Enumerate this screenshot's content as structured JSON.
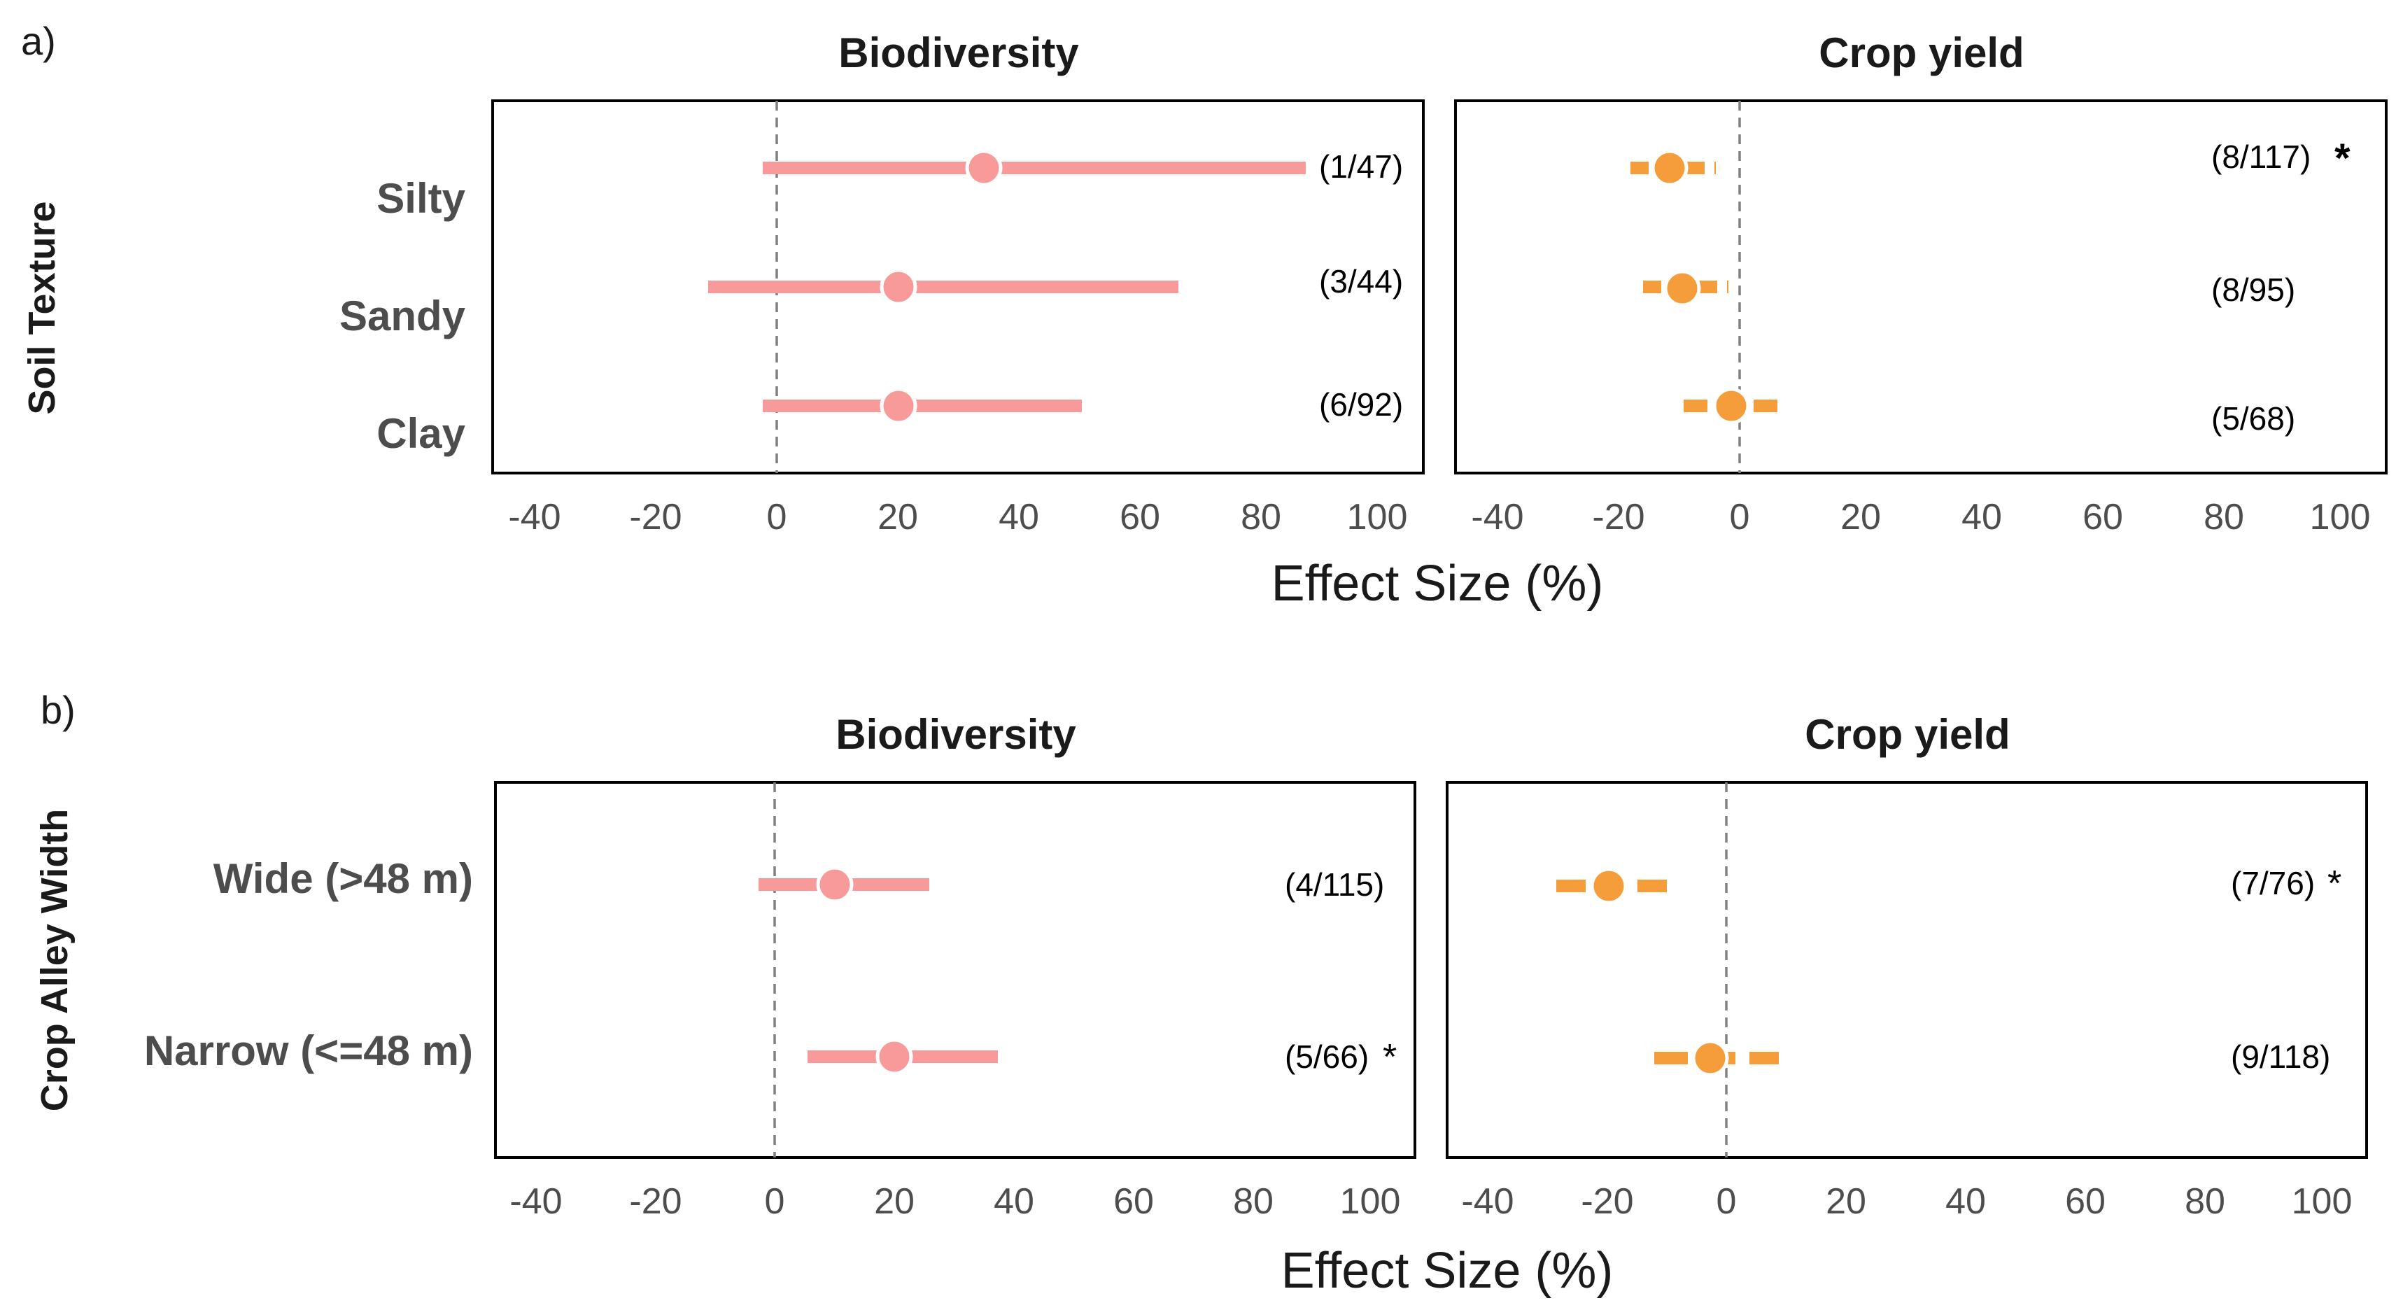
{
  "figure": {
    "x_title": "Effect Size (%)",
    "x_ticks": [
      -40,
      -20,
      0,
      20,
      40,
      60,
      80,
      100
    ],
    "colors": {
      "biodiversity": "#f8999a",
      "crop_yield": "#f59d3a",
      "axis_text": "#4d4d4d",
      "title_text": "#1a1a1a",
      "zero_line": "#808080"
    }
  },
  "chart_data": [
    {
      "type": "forest",
      "panel": "a)",
      "facet": "Soil Texture",
      "xlim": [
        -40,
        100
      ],
      "categories": [
        "Silty",
        "Sandy",
        "Clay"
      ],
      "series": [
        {
          "name": "Biodiversity",
          "color": "#f8999a",
          "points": [
            {
              "category": "Silty",
              "estimate": 34,
              "low": -2,
              "high": 87,
              "label": "(1/47)",
              "significant": false
            },
            {
              "category": "Sandy",
              "estimate": 20,
              "low": -11,
              "high": 66,
              "label": "(3/44)",
              "significant": false
            },
            {
              "category": "Clay",
              "estimate": 20,
              "low": -2,
              "high": 50,
              "label": "(6/92)",
              "significant": false
            }
          ]
        },
        {
          "name": "Crop yield",
          "color": "#f59d3a",
          "points": [
            {
              "category": "Silty",
              "estimate": -12,
              "low": -18,
              "high": -4,
              "label": "(8/117)",
              "significant": true
            },
            {
              "category": "Sandy",
              "estimate": -10,
              "low": -16,
              "high": -2,
              "label": "(8/95)",
              "significant": false
            },
            {
              "category": "Clay",
              "estimate": -2,
              "low": -9,
              "high": 7,
              "label": "(5/68)",
              "significant": false
            }
          ]
        }
      ]
    },
    {
      "type": "forest",
      "panel": "b)",
      "facet": "Crop Alley Width",
      "xlim": [
        -40,
        100
      ],
      "categories": [
        "Wide (>48 m)",
        "Narrow (<=48 m)"
      ],
      "series": [
        {
          "name": "Biodiversity",
          "color": "#f8999a",
          "points": [
            {
              "category": "Wide (>48 m)",
              "estimate": 10,
              "low": -3,
              "high": 26,
              "label": "(4/115)",
              "significant": false
            },
            {
              "category": "Narrow (<=48 m)",
              "estimate": 20,
              "low": 6,
              "high": 37,
              "label": "(5/66)",
              "significant": true
            }
          ]
        },
        {
          "name": "Crop yield",
          "color": "#f59d3a",
          "points": [
            {
              "category": "Wide (>48 m)",
              "estimate": -20,
              "low": -28,
              "high": -9,
              "label": "(7/76)",
              "significant": true
            },
            {
              "category": "Narrow (<=48 m)",
              "estimate": -3,
              "low": -12,
              "high": 8,
              "label": "(9/118)",
              "significant": false
            }
          ]
        }
      ]
    }
  ],
  "significance_marker": "*"
}
